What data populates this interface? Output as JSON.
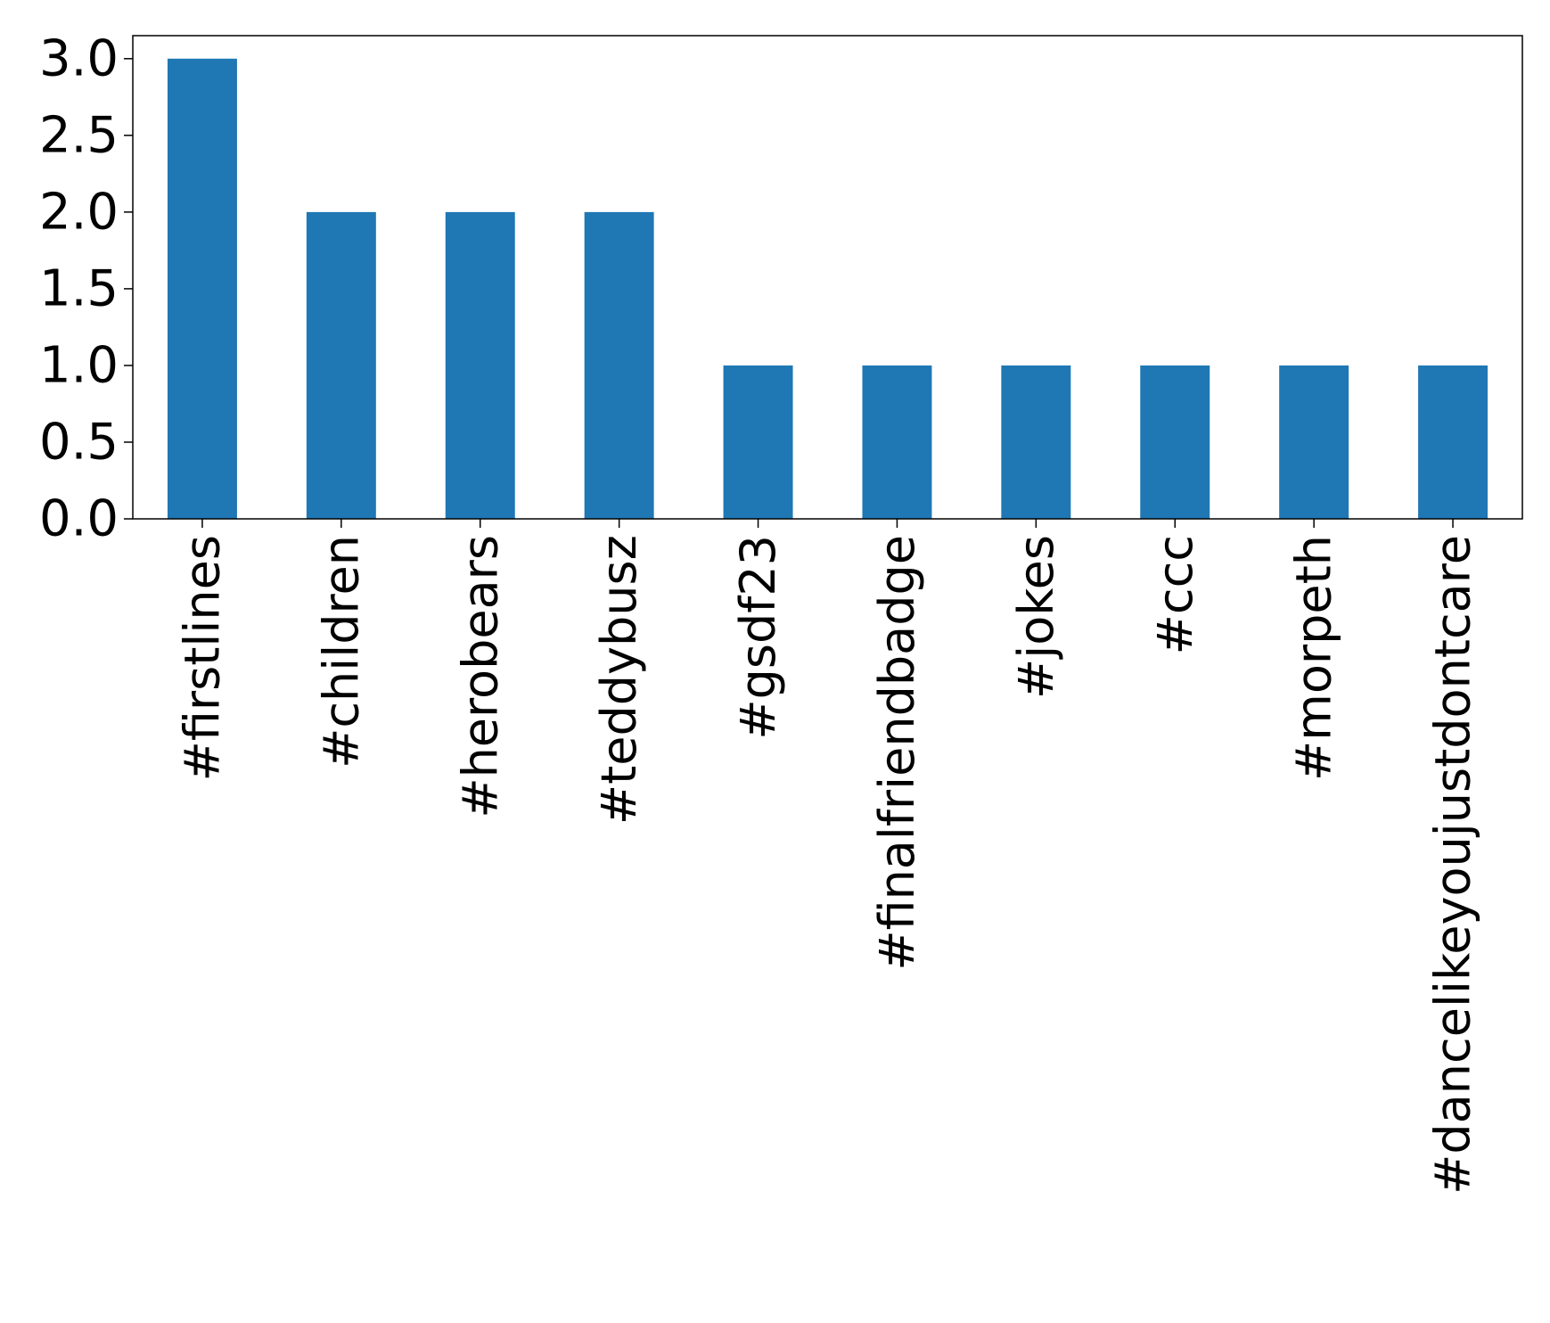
{
  "chart_data": {
    "type": "bar",
    "title": "",
    "xlabel": "",
    "ylabel": "",
    "categories": [
      "#firstlines",
      "#children",
      "#herobears",
      "#teddybusz",
      "#gsdf23",
      "#finalfriendbadge",
      "#jokes",
      "#ccc",
      "#morpeth",
      "#dancelikeyoujustdontcare"
    ],
    "values": [
      3,
      2,
      2,
      2,
      1,
      1,
      1,
      1,
      1,
      1
    ],
    "ylim": [
      0,
      3.15
    ],
    "yticks": [
      "0.0",
      "0.5",
      "1.0",
      "1.5",
      "2.0",
      "2.5",
      "3.0"
    ],
    "grid": false,
    "legend": "none",
    "bar_color": "#1f77b4"
  }
}
